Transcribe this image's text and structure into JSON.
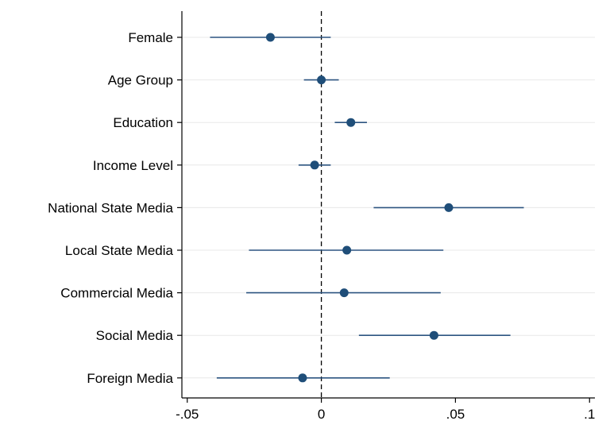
{
  "chart_data": {
    "type": "scatter",
    "subtype": "coefficient-plot",
    "title": "",
    "xlabel": "",
    "ylabel": "",
    "categories": [
      "Female",
      "Age Group",
      "Education",
      "Income Level",
      "National State Media",
      "Local State Media",
      "Commercial Media",
      "Social Media",
      "Foreign Media"
    ],
    "estimates": [
      -0.019,
      0.0,
      0.011,
      -0.0025,
      0.0475,
      0.0095,
      0.0085,
      0.042,
      -0.007
    ],
    "ci_low": [
      -0.0415,
      -0.0065,
      0.005,
      -0.0085,
      0.0195,
      -0.027,
      -0.028,
      0.014,
      -0.039
    ],
    "ci_high": [
      0.0035,
      0.0065,
      0.017,
      0.0035,
      0.0755,
      0.0455,
      0.0445,
      0.0705,
      0.0255
    ],
    "xlim": [
      -0.052,
      0.102
    ],
    "xticks": [
      -0.05,
      0,
      0.05,
      0.1
    ],
    "xtick_labels": [
      "-.05",
      "0",
      ".05",
      ".1"
    ],
    "reference_line": 0,
    "reference_line_style": "dashed",
    "grid": "horizontal",
    "legend": "none",
    "marker_color": "#1f4e79",
    "line_color": "#2c5480",
    "grid_color": "#e8e8e8"
  }
}
